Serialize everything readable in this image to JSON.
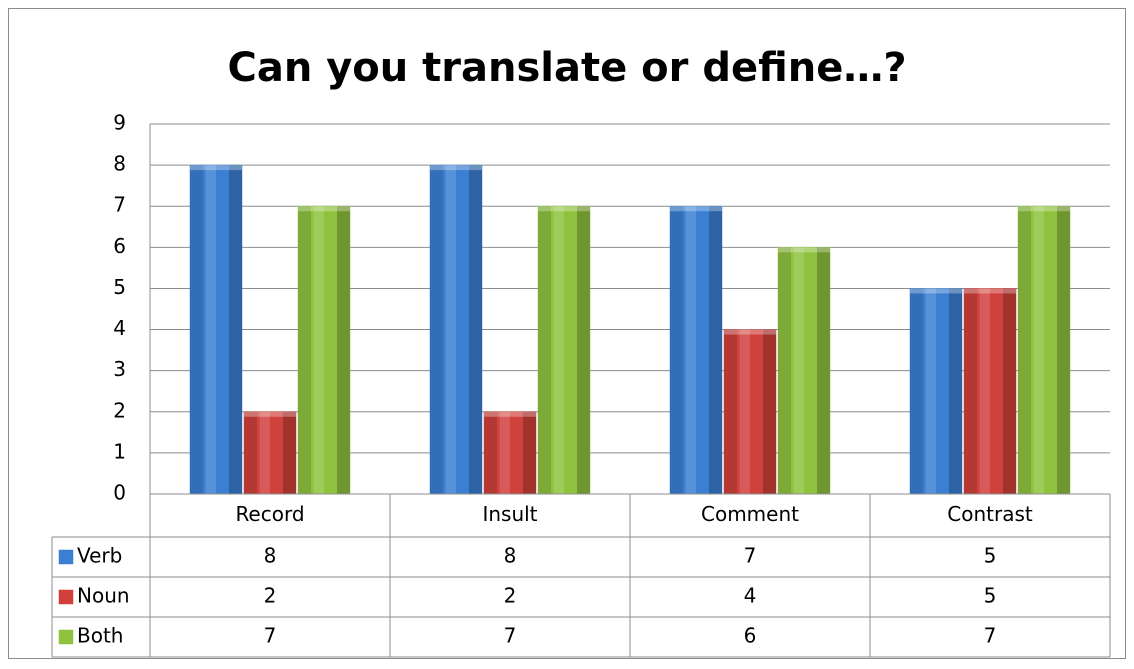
{
  "chart_data": {
    "type": "bar",
    "title": "Can you translate or define…?",
    "categories": [
      "Record",
      "Insult",
      "Comment",
      "Contrast"
    ],
    "series": [
      {
        "name": "Verb",
        "color": "#3a7fd2",
        "values": [
          8,
          8,
          7,
          5
        ]
      },
      {
        "name": "Noun",
        "color": "#d0403c",
        "values": [
          2,
          2,
          4,
          5
        ]
      },
      {
        "name": "Both",
        "color": "#8fc23e",
        "values": [
          7,
          7,
          6,
          7
        ]
      }
    ],
    "ylim": [
      0,
      9
    ],
    "yticks": [
      0,
      1,
      2,
      3,
      4,
      5,
      6,
      7,
      8,
      9
    ],
    "grid": true
  }
}
